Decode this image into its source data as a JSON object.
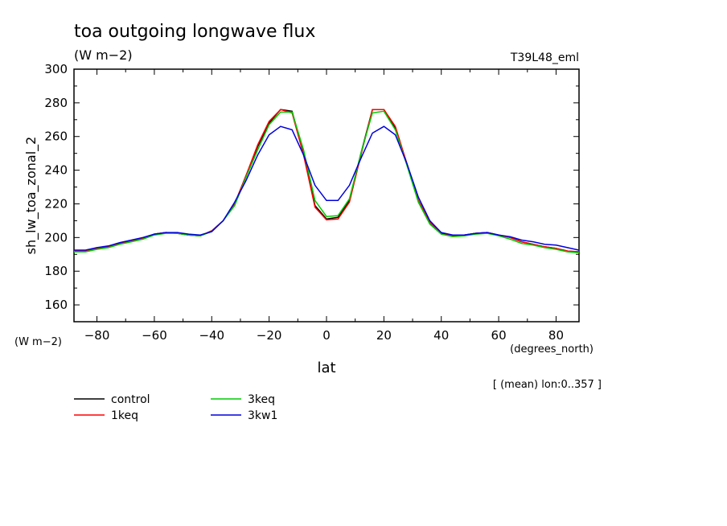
{
  "colors": {
    "control": "#000000",
    "1keq": "#ff0000",
    "3keq": "#00cc00",
    "3kw1": "#0000dd"
  },
  "header": {
    "title": "toa outgoing longwave flux",
    "units": "(W m−2)",
    "run_label": "T39L48_eml"
  },
  "chart_data": {
    "type": "line",
    "title": "toa outgoing longwave flux",
    "xlabel": "lat",
    "xunits": "(degrees_north)",
    "ylabel": "sh_lw_toa_zonal_2",
    "yunits": "(W m−2)",
    "xlim": [
      -88,
      88
    ],
    "ylim": [
      150,
      300
    ],
    "xticks": [
      -80,
      -60,
      -40,
      -20,
      0,
      20,
      40,
      60,
      80
    ],
    "yticks": [
      160,
      180,
      200,
      220,
      240,
      260,
      280,
      300
    ],
    "grid": false,
    "legend_position": "bottom-left",
    "note": "[ (mean) lon:0..357 ]",
    "x": [
      -88,
      -84,
      -80,
      -76,
      -72,
      -68,
      -64,
      -60,
      -56,
      -52,
      -48,
      -44,
      -40,
      -36,
      -32,
      -28,
      -24,
      -20,
      -16,
      -12,
      -8,
      -4,
      0,
      4,
      8,
      12,
      16,
      20,
      24,
      28,
      32,
      36,
      40,
      44,
      48,
      52,
      56,
      60,
      64,
      68,
      72,
      76,
      80,
      84,
      88
    ],
    "series": [
      {
        "name": "control",
        "values": [
          192,
          192,
          193.5,
          194.5,
          196.5,
          198,
          199.5,
          202,
          203,
          202.5,
          201.5,
          201,
          204,
          210,
          220,
          237,
          254,
          268,
          276,
          275,
          250,
          219,
          211,
          212,
          222,
          250,
          276,
          276,
          265,
          244,
          222,
          209,
          202.5,
          201,
          201.5,
          202.5,
          203,
          201.5,
          200,
          197.5,
          196,
          194.5,
          193.5,
          192,
          191.5
        ]
      },
      {
        "name": "1keq",
        "values": [
          192,
          192,
          193.5,
          194.5,
          196.5,
          198,
          199.5,
          202,
          203,
          202.5,
          201.5,
          201,
          204,
          210,
          220,
          237,
          255,
          269,
          276,
          274,
          249,
          218,
          210.5,
          211,
          221,
          249,
          276,
          276,
          266,
          244,
          222,
          209,
          202,
          201,
          201.5,
          202.5,
          203,
          201.5,
          200,
          197.5,
          196,
          194.5,
          193.5,
          192,
          191.5
        ]
      },
      {
        "name": "3keq",
        "values": [
          191.5,
          191.5,
          193,
          194,
          196,
          197.5,
          199,
          201.5,
          202.5,
          202.5,
          201.5,
          201,
          203.5,
          210,
          219,
          236,
          252,
          267,
          274.5,
          274.5,
          252,
          222,
          212.5,
          213,
          223,
          250,
          274,
          275,
          264,
          243,
          221,
          208,
          202,
          200.5,
          201,
          202,
          202.5,
          201,
          199,
          196.5,
          195.5,
          194,
          193,
          191.5,
          191
        ]
      },
      {
        "name": "3kw1",
        "values": [
          192.5,
          192.5,
          194,
          195,
          197,
          198.5,
          200,
          202,
          203,
          203,
          202,
          201.5,
          203.5,
          210,
          221,
          234,
          249,
          261,
          266,
          264,
          249,
          231,
          222,
          222,
          231,
          247,
          262,
          266,
          261,
          244,
          224,
          210,
          203,
          201.5,
          201.5,
          202.5,
          203,
          201.5,
          200.5,
          198.5,
          197.5,
          196,
          195.5,
          194,
          192.5
        ]
      }
    ]
  }
}
